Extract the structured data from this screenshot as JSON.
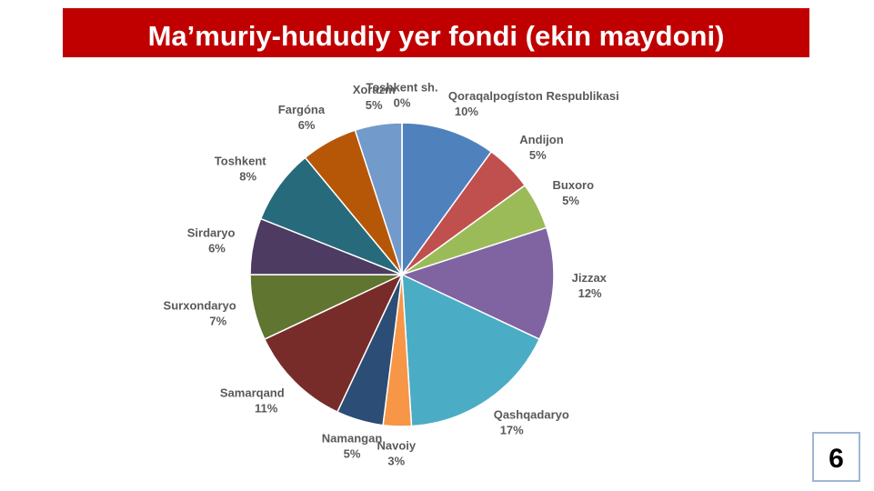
{
  "title": "Ma’muriy-hududiy yer fondi (ekin maydoni)",
  "page_number": "6",
  "chart_data": {
    "type": "pie",
    "categories": [
      "Qoraqalpogíston Respublikasi",
      "Andijon",
      "Buxoro",
      "Jizzax",
      "Qashqadaryo",
      "Navoiy",
      "Namangan",
      "Samarqand",
      "Surxondaryo",
      "Sirdaryo",
      "Toshkent",
      "Fargóna",
      "Xorazm",
      "Toshkent sh."
    ],
    "values": [
      10,
      5,
      5,
      12,
      17,
      3,
      5,
      11,
      7,
      6,
      8,
      6,
      5,
      0
    ],
    "value_labels": [
      "10%",
      "5%",
      "5%",
      "12%",
      "17%",
      "3%",
      "5%",
      "11%",
      "7%",
      "6%",
      "8%",
      "6%",
      "5%",
      "0%"
    ],
    "colors": [
      "#4f81bd",
      "#c0504d",
      "#9bbb59",
      "#8064a2",
      "#4bacc6",
      "#f79646",
      "#2c4d75",
      "#772c2a",
      "#5f7530",
      "#4d3b62",
      "#276a7c",
      "#b65708",
      "#729aca",
      "#a5a5a5"
    ]
  }
}
